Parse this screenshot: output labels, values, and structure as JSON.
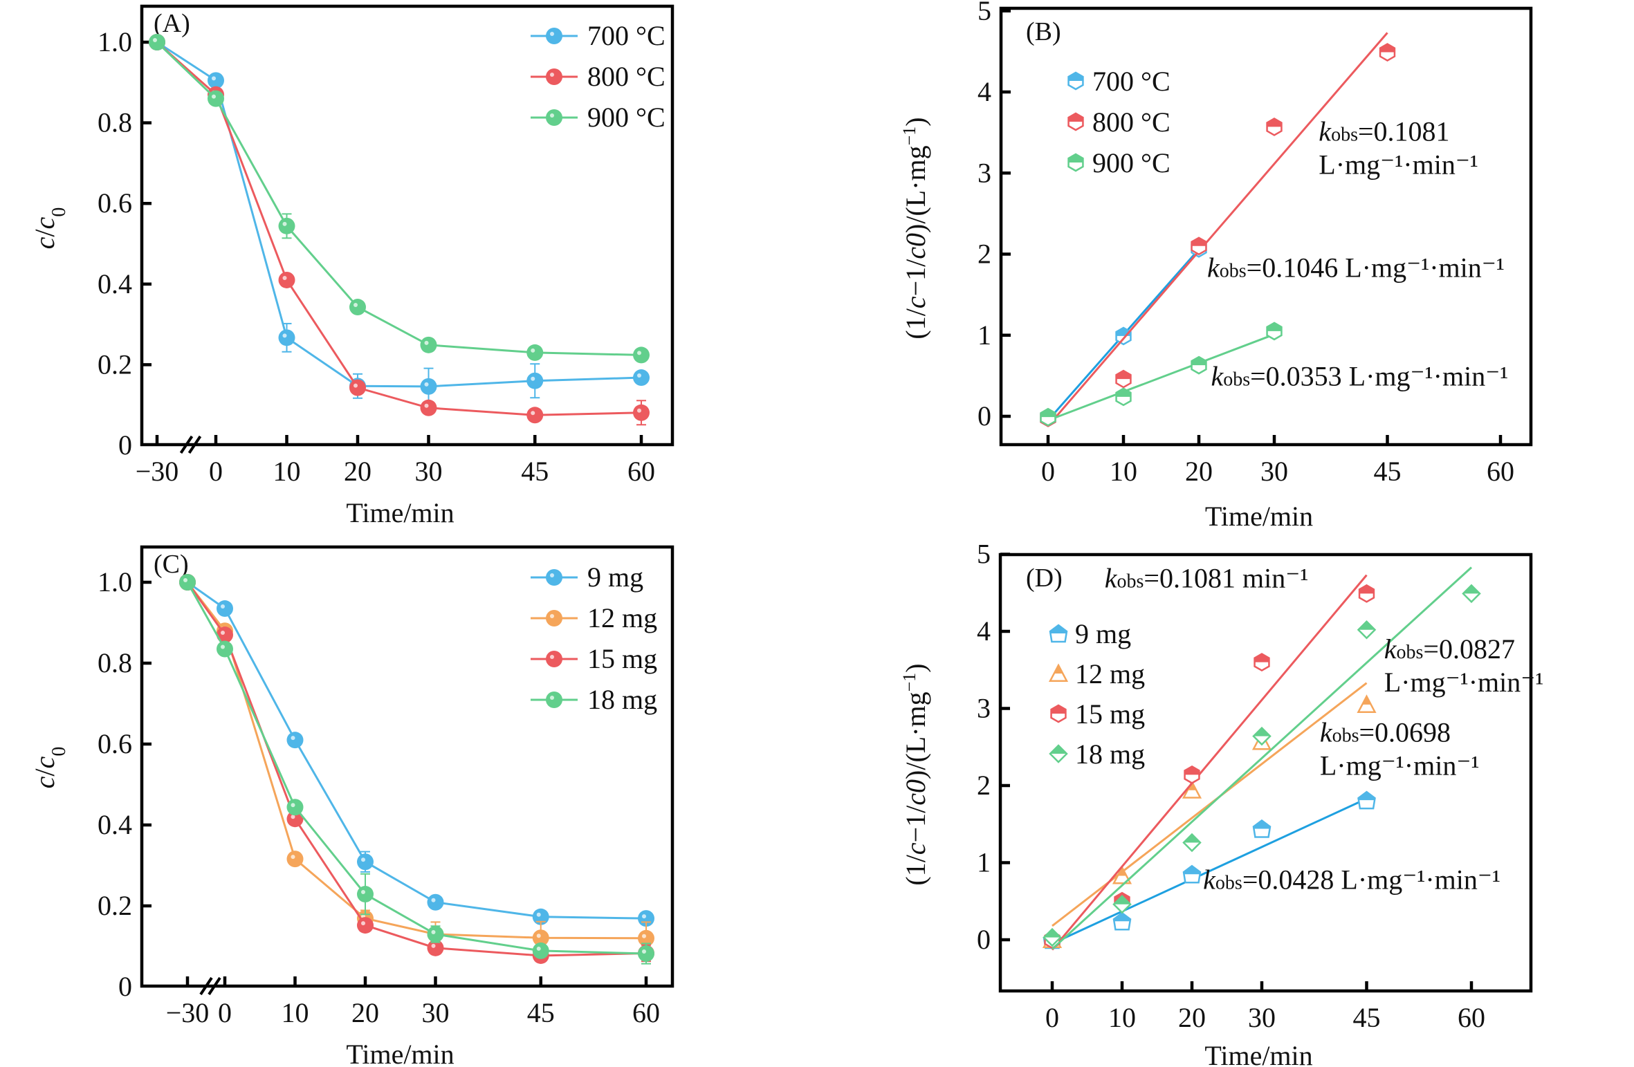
{
  "colors": {
    "blue": "#4fb6e8",
    "blue_fit": "#1ea0e0",
    "red": "#ec5a5e",
    "green": "#62cf8c",
    "orange": "#f5a55a",
    "axis": "#000000"
  },
  "chart_data": [
    {
      "id": "A",
      "panel_label": "(A)",
      "type": "line",
      "xlabel": "Time/min",
      "ylabel": "c/c0",
      "ylabel_parts": {
        "c": "c",
        "slash": "/",
        "c0": "c",
        "sub": "0"
      },
      "x_ticks": [
        -30,
        0,
        10,
        20,
        30,
        45,
        60
      ],
      "x_tick_labels": [
        "−30",
        "0",
        "10",
        "20",
        "30",
        "45",
        "60"
      ],
      "y_ticks": [
        0,
        0.2,
        0.4,
        0.6,
        0.8,
        1.0
      ],
      "y_tick_labels": [
        "0",
        "0.2",
        "0.4",
        "0.6",
        "0.8",
        "1.0"
      ],
      "ylim": [
        0,
        1.09
      ],
      "x_axis_break": "between -30 and 0",
      "legend_position": "top-right",
      "x": [
        -30,
        0,
        10,
        20,
        30,
        45,
        60
      ],
      "series": [
        {
          "name": "700 °C",
          "color_key": "blue",
          "values": [
            1.0,
            0.905,
            0.267,
            0.147,
            0.146,
            0.16,
            0.168
          ],
          "errors": [
            0,
            0,
            0.035,
            0.03,
            0.045,
            0.042,
            0
          ]
        },
        {
          "name": "800 °C",
          "color_key": "red",
          "values": [
            1.0,
            0.87,
            0.41,
            0.143,
            0.093,
            0.075,
            0.081
          ],
          "errors": [
            0,
            0,
            0,
            0,
            0,
            0,
            0.03
          ]
        },
        {
          "name": "900 °C",
          "color_key": "green",
          "values": [
            1.0,
            0.86,
            0.544,
            0.343,
            0.249,
            0.23,
            0.224
          ],
          "errors": [
            0,
            0,
            0.03,
            0,
            0,
            0,
            0
          ]
        }
      ]
    },
    {
      "id": "B",
      "panel_label": "(B)",
      "type": "scatter",
      "xlabel": "Time/min",
      "ylabel": "(1/c−1/c0)/(L·mg⁻¹)",
      "ylabel_parts": {
        "open": "(1/",
        "c": "c",
        "mid": "−1/",
        "c0": "c0",
        "close": ")/(L·mg",
        "sup": "−1",
        "end": ")"
      },
      "x_ticks": [
        0,
        10,
        20,
        30,
        45,
        60
      ],
      "x_tick_labels": [
        "0",
        "10",
        "20",
        "30",
        "45",
        "60"
      ],
      "y_ticks": [
        0,
        1,
        2,
        3,
        4,
        5
      ],
      "y_tick_labels": [
        "0",
        "1",
        "2",
        "3",
        "4",
        "5"
      ],
      "ylim": [
        -0.35,
        5.03
      ],
      "xlim": [
        -6.2,
        64.2
      ],
      "legend_position": "top-left",
      "series": [
        {
          "name": "700 °C",
          "color_key": "blue",
          "x": [
            0,
            10,
            20
          ],
          "values": [
            -0.02,
            0.99,
            2.07
          ],
          "fit": {
            "x": [
              0,
              20
            ],
            "y": [
              -0.05,
              2.06
            ]
          }
        },
        {
          "name": "800 °C",
          "color_key": "red",
          "x": [
            0,
            10,
            20,
            30,
            45
          ],
          "values": [
            -0.02,
            0.46,
            2.1,
            3.57,
            4.49
          ],
          "fit": {
            "x": [
              0,
              45
            ],
            "y": [
              -0.12,
              4.73
            ]
          }
        },
        {
          "name": "900 °C",
          "color_key": "green",
          "x": [
            0,
            10,
            20,
            30
          ],
          "values": [
            -0.01,
            0.24,
            0.63,
            1.05
          ],
          "fit": {
            "x": [
              0,
              30
            ],
            "y": [
              -0.05,
              1.01
            ]
          }
        }
      ],
      "annotations": [
        {
          "k": "k",
          "sub": "obs",
          "text": "=0.1081",
          "line2": "L·mg⁻¹·min⁻¹",
          "anchor_x": 35.9,
          "anchor_y": 3.4
        },
        {
          "k": "k",
          "sub": "obs",
          "text": "=0.1046 L·mg⁻¹·min⁻¹",
          "anchor_x": 21.1,
          "anchor_y": 1.72
        },
        {
          "k": "k",
          "sub": "obs",
          "text": "=0.0353 L·mg⁻¹·min⁻¹",
          "anchor_x": 21.6,
          "anchor_y": 0.38
        }
      ]
    },
    {
      "id": "C",
      "panel_label": "(C)",
      "type": "line",
      "xlabel": "Time/min",
      "ylabel": "c/c0",
      "ylabel_parts": {
        "c": "c",
        "slash": "/",
        "c0": "c",
        "sub": "0"
      },
      "x_ticks": [
        -30,
        0,
        10,
        20,
        30,
        45,
        60
      ],
      "x_tick_labels": [
        "−30",
        "0",
        "10",
        "20",
        "30",
        "45",
        "60"
      ],
      "y_ticks": [
        0,
        0.2,
        0.4,
        0.6,
        0.8,
        1.0
      ],
      "y_tick_labels": [
        "0",
        "0.2",
        "0.4",
        "0.6",
        "0.8",
        "1.0"
      ],
      "ylim": [
        0,
        1.09
      ],
      "x_axis_break": "between -30 and 0",
      "legend_position": "top-right",
      "x": [
        -30,
        0,
        10,
        20,
        30,
        45,
        60
      ],
      "series": [
        {
          "name": "9 mg",
          "color_key": "blue",
          "values": [
            1.0,
            0.935,
            0.61,
            0.309,
            0.209,
            0.173,
            0.169
          ],
          "errors": [
            0,
            0,
            0,
            0.025,
            0,
            0,
            0
          ]
        },
        {
          "name": "12 mg",
          "color_key": "orange",
          "values": [
            1.0,
            0.88,
            0.316,
            0.169,
            0.13,
            0.121,
            0.12
          ],
          "errors": [
            0,
            0,
            0,
            0.02,
            0.03,
            0.04,
            0.04
          ]
        },
        {
          "name": "15 mg",
          "color_key": "red",
          "values": [
            1.0,
            0.87,
            0.415,
            0.152,
            0.096,
            0.077,
            0.083
          ],
          "errors": [
            0,
            0,
            0,
            0,
            0,
            0,
            0.02
          ]
        },
        {
          "name": "18 mg",
          "color_key": "green",
          "values": [
            1.0,
            0.835,
            0.444,
            0.229,
            0.13,
            0.089,
            0.082
          ],
          "errors": [
            0,
            0,
            0,
            0.05,
            0.02,
            0.01,
            0.025
          ]
        }
      ]
    },
    {
      "id": "D",
      "panel_label": "(D)",
      "type": "scatter",
      "xlabel": "Time/min",
      "ylabel": "(1/c−1/c0)/(L·mg⁻¹)",
      "ylabel_parts": {
        "open": "(1/",
        "c": "c",
        "mid": "−1/",
        "c0": "c0",
        "close": ")/(L·mg",
        "sup": "−1",
        "end": ")"
      },
      "x_ticks": [
        0,
        10,
        20,
        30,
        45,
        60
      ],
      "x_tick_labels": [
        "0",
        "10",
        "20",
        "30",
        "45",
        "60"
      ],
      "y_ticks": [
        0,
        1,
        2,
        3,
        4,
        5
      ],
      "y_tick_labels": [
        "0",
        "1",
        "2",
        "3",
        "4",
        "5"
      ],
      "ylim": [
        -0.66,
        5.0
      ],
      "xlim": [
        -7.4,
        68.7
      ],
      "legend_position": "top-left",
      "series": [
        {
          "name": "9 mg",
          "color_key": "blue",
          "marker": "pentagon",
          "x": [
            0,
            10,
            20,
            30,
            45
          ],
          "values": [
            0.0,
            0.24,
            0.85,
            1.44,
            1.81
          ],
          "fit": {
            "x": [
              0,
              45
            ],
            "y": [
              -0.05,
              1.83
            ]
          }
        },
        {
          "name": "12 mg",
          "color_key": "orange",
          "marker": "triangle",
          "x": [
            0,
            10,
            20,
            30,
            45
          ],
          "values": [
            0.0,
            0.83,
            1.94,
            2.57,
            3.05
          ],
          "fit": {
            "x": [
              0,
              45
            ],
            "y": [
              0.18,
              3.33
            ]
          }
        },
        {
          "name": "15 mg",
          "color_key": "red",
          "marker": "hexagon",
          "x": [
            0,
            10,
            20,
            30,
            45
          ],
          "values": [
            0.0,
            0.5,
            2.14,
            3.6,
            4.49
          ],
          "fit": {
            "x": [
              0,
              45
            ],
            "y": [
              -0.13,
              4.73
            ]
          }
        },
        {
          "name": "18 mg",
          "color_key": "green",
          "marker": "diamond",
          "x": [
            0,
            10,
            20,
            30,
            45,
            60
          ],
          "values": [
            0.03,
            0.46,
            1.26,
            2.64,
            4.02,
            4.49
          ],
          "fit": {
            "x": [
              0,
              60
            ],
            "y": [
              -0.12,
              4.83
            ]
          }
        }
      ],
      "annotations": [
        {
          "k": "k",
          "sub": "obs",
          "text": "=0.1081 min⁻¹",
          "line2": "",
          "anchor_x": 7.5,
          "anchor_y": 4.57
        },
        {
          "k": "k",
          "sub": "obs",
          "text": "=0.0827",
          "line2": "L·mg⁻¹·min⁻¹",
          "anchor_x": 47.5,
          "anchor_y": 3.65
        },
        {
          "k": "k",
          "sub": "obs",
          "text": "=0.0698",
          "line2": "L·mg⁻¹·min⁻¹",
          "anchor_x": 38.3,
          "anchor_y": 2.57
        },
        {
          "k": "k",
          "sub": "obs",
          "text": "=0.0428 L·mg⁻¹·min⁻¹",
          "anchor_x": 21.6,
          "anchor_y": 0.66
        }
      ]
    }
  ]
}
